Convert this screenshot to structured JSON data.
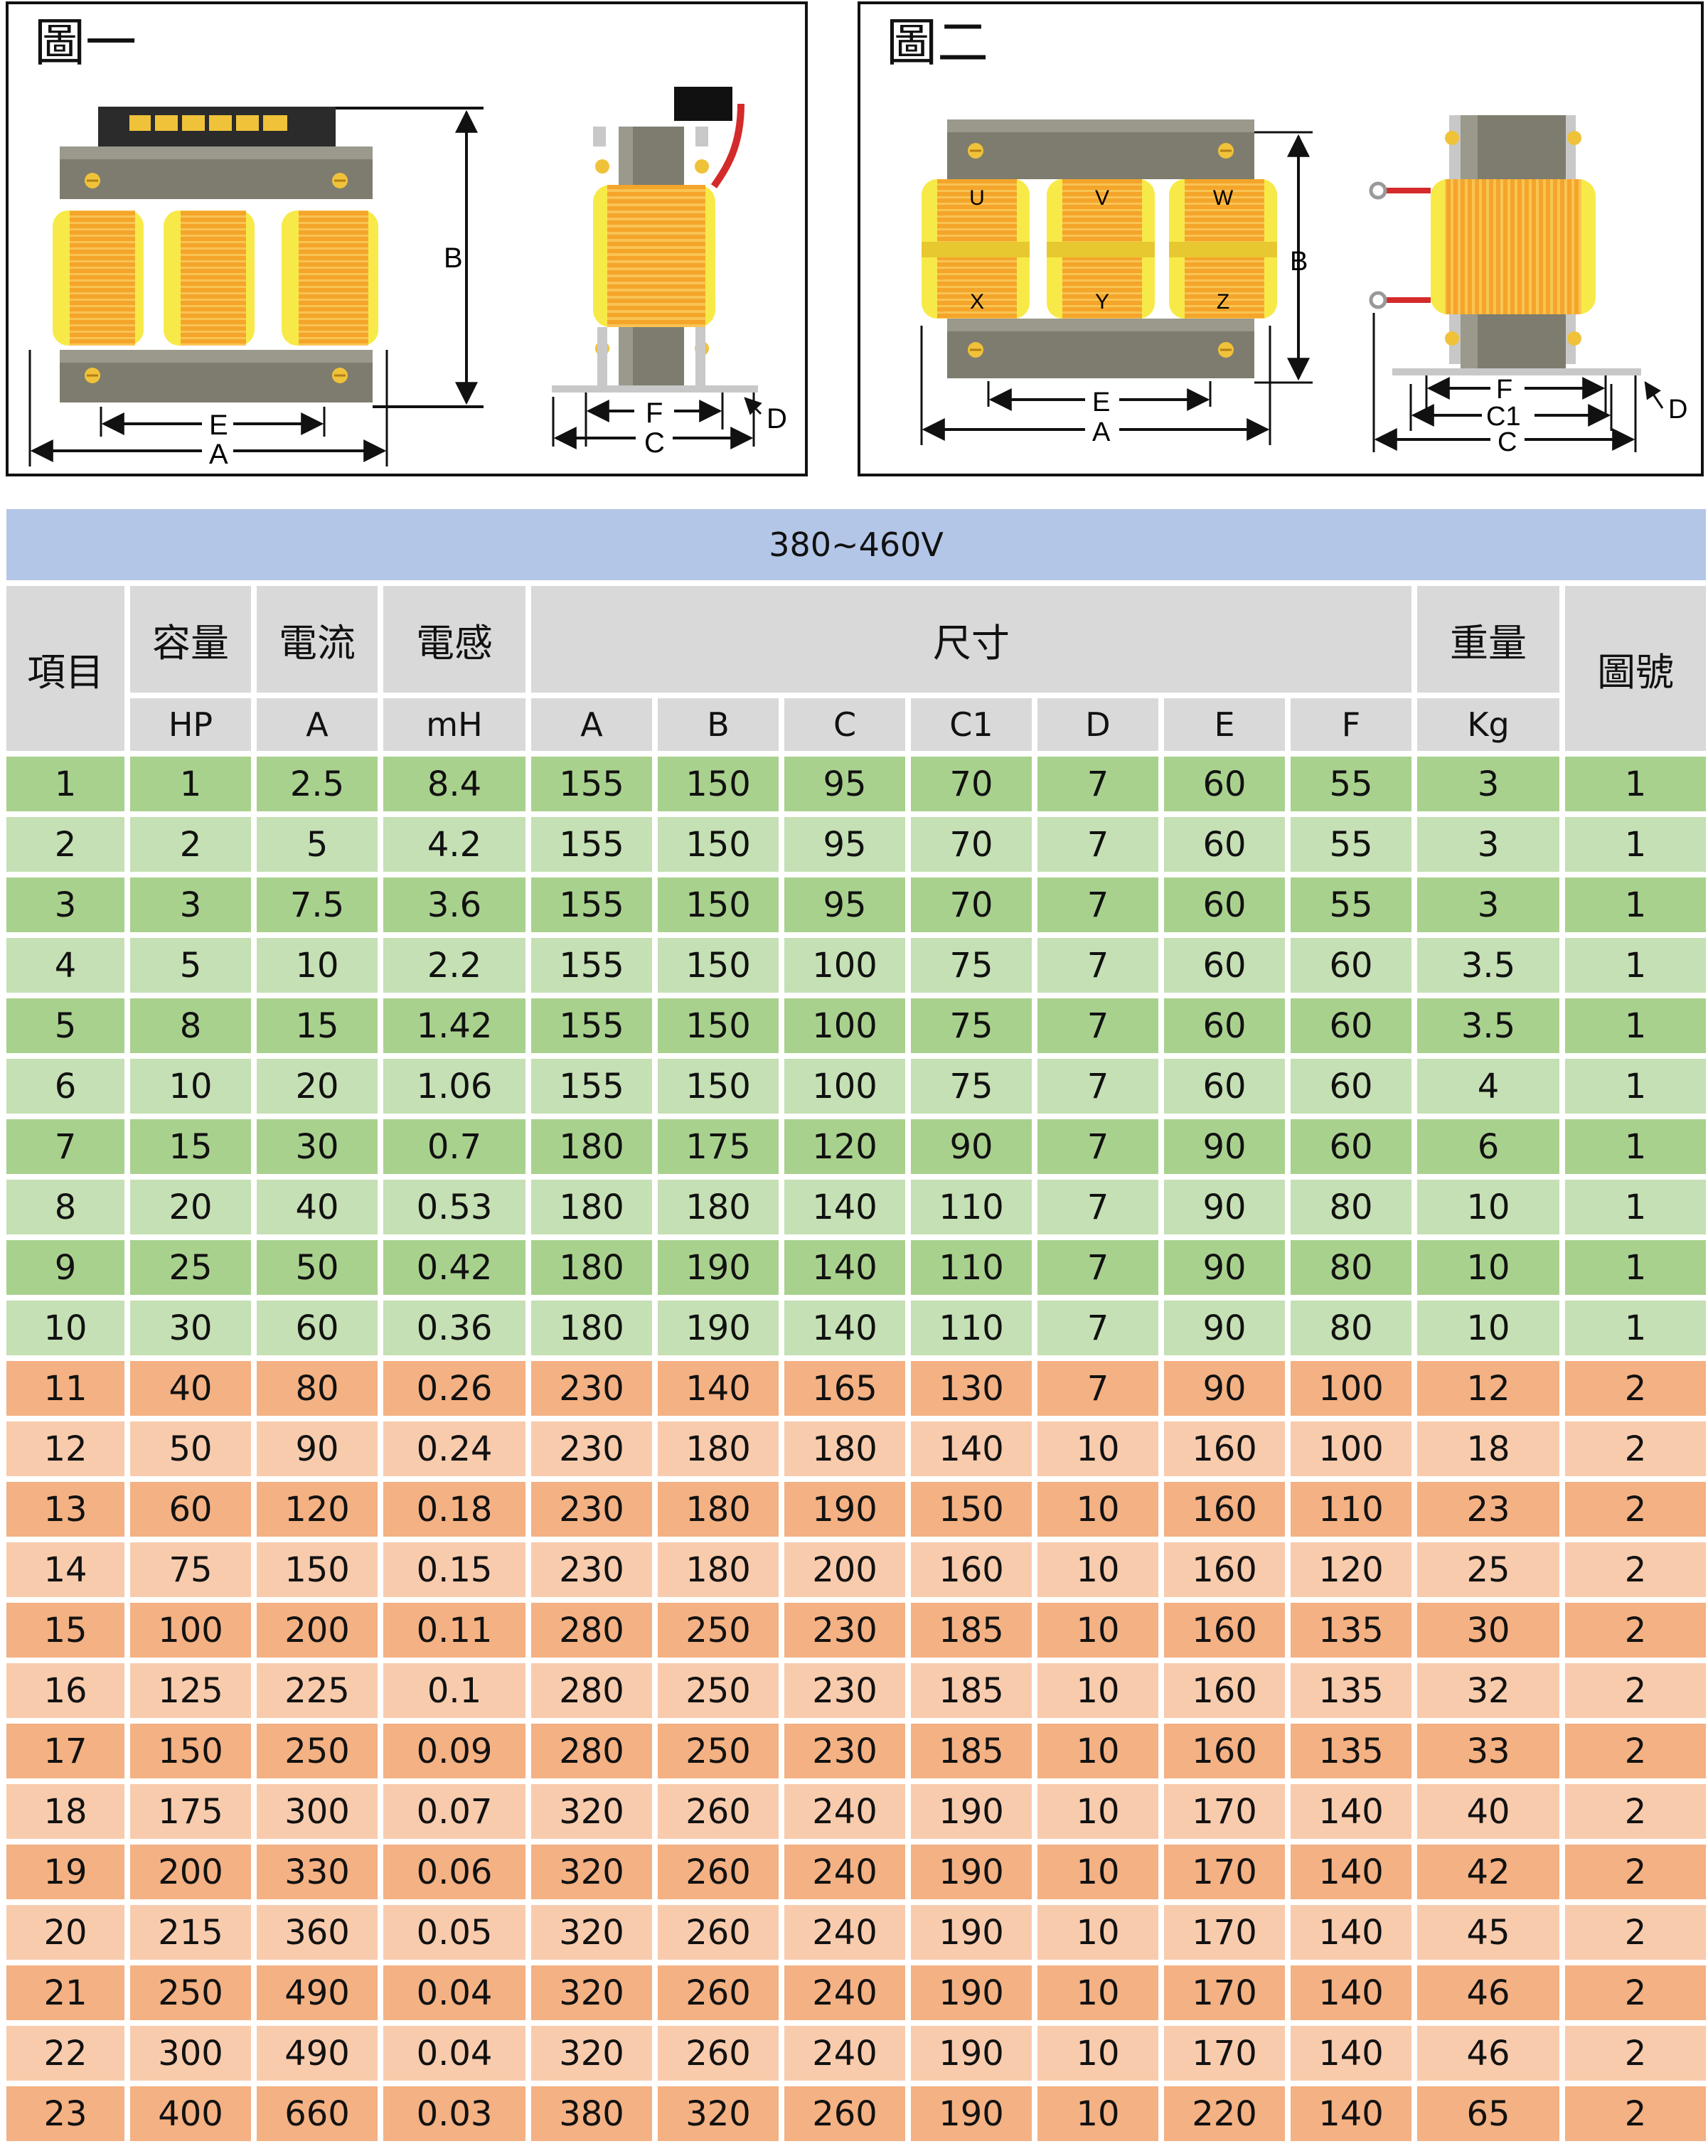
{
  "figures": [
    {
      "title": "圖一",
      "side_labels": {
        "d": "D",
        "f": "F",
        "c": "C"
      },
      "front_labels": {
        "b": "B",
        "e": "E",
        "a": "A"
      }
    },
    {
      "title": "圖二",
      "coil_labels": [
        "U",
        "V",
        "W",
        "X",
        "Y",
        "Z"
      ],
      "front_labels": {
        "b": "B",
        "e": "E",
        "a": "A"
      },
      "side_labels": {
        "f": "F",
        "c1": "C1",
        "c": "C",
        "d": "D"
      }
    }
  ],
  "table": {
    "voltage": "380~460V",
    "headers": {
      "item": "項目",
      "capacity": "容量",
      "current": "電流",
      "inductance": "電感",
      "dimensions": "尺寸",
      "weight": "重量",
      "figure_no": "圖號"
    },
    "units": [
      "HP",
      "A",
      "mH",
      "A",
      "B",
      "C",
      "C1",
      "D",
      "E",
      "F",
      "Kg"
    ],
    "rows": [
      [
        "1",
        "1",
        "2.5",
        "8.4",
        "155",
        "150",
        "95",
        "70",
        "7",
        "60",
        "55",
        "3",
        "1"
      ],
      [
        "2",
        "2",
        "5",
        "4.2",
        "155",
        "150",
        "95",
        "70",
        "7",
        "60",
        "55",
        "3",
        "1"
      ],
      [
        "3",
        "3",
        "7.5",
        "3.6",
        "155",
        "150",
        "95",
        "70",
        "7",
        "60",
        "55",
        "3",
        "1"
      ],
      [
        "4",
        "5",
        "10",
        "2.2",
        "155",
        "150",
        "100",
        "75",
        "7",
        "60",
        "60",
        "3.5",
        "1"
      ],
      [
        "5",
        "8",
        "15",
        "1.42",
        "155",
        "150",
        "100",
        "75",
        "7",
        "60",
        "60",
        "3.5",
        "1"
      ],
      [
        "6",
        "10",
        "20",
        "1.06",
        "155",
        "150",
        "100",
        "75",
        "7",
        "60",
        "60",
        "4",
        "1"
      ],
      [
        "7",
        "15",
        "30",
        "0.7",
        "180",
        "175",
        "120",
        "90",
        "7",
        "90",
        "60",
        "6",
        "1"
      ],
      [
        "8",
        "20",
        "40",
        "0.53",
        "180",
        "180",
        "140",
        "110",
        "7",
        "90",
        "80",
        "10",
        "1"
      ],
      [
        "9",
        "25",
        "50",
        "0.42",
        "180",
        "190",
        "140",
        "110",
        "7",
        "90",
        "80",
        "10",
        "1"
      ],
      [
        "10",
        "30",
        "60",
        "0.36",
        "180",
        "190",
        "140",
        "110",
        "7",
        "90",
        "80",
        "10",
        "1"
      ],
      [
        "11",
        "40",
        "80",
        "0.26",
        "230",
        "140",
        "165",
        "130",
        "7",
        "90",
        "100",
        "12",
        "2"
      ],
      [
        "12",
        "50",
        "90",
        "0.24",
        "230",
        "180",
        "180",
        "140",
        "10",
        "160",
        "100",
        "18",
        "2"
      ],
      [
        "13",
        "60",
        "120",
        "0.18",
        "230",
        "180",
        "190",
        "150",
        "10",
        "160",
        "110",
        "23",
        "2"
      ],
      [
        "14",
        "75",
        "150",
        "0.15",
        "230",
        "180",
        "200",
        "160",
        "10",
        "160",
        "120",
        "25",
        "2"
      ],
      [
        "15",
        "100",
        "200",
        "0.11",
        "280",
        "250",
        "230",
        "185",
        "10",
        "160",
        "135",
        "30",
        "2"
      ],
      [
        "16",
        "125",
        "225",
        "0.1",
        "280",
        "250",
        "230",
        "185",
        "10",
        "160",
        "135",
        "32",
        "2"
      ],
      [
        "17",
        "150",
        "250",
        "0.09",
        "280",
        "250",
        "230",
        "185",
        "10",
        "160",
        "135",
        "33",
        "2"
      ],
      [
        "18",
        "175",
        "300",
        "0.07",
        "320",
        "260",
        "240",
        "190",
        "10",
        "170",
        "140",
        "40",
        "2"
      ],
      [
        "19",
        "200",
        "330",
        "0.06",
        "320",
        "260",
        "240",
        "190",
        "10",
        "170",
        "140",
        "42",
        "2"
      ],
      [
        "20",
        "215",
        "360",
        "0.05",
        "320",
        "260",
        "240",
        "190",
        "10",
        "170",
        "140",
        "45",
        "2"
      ],
      [
        "21",
        "250",
        "490",
        "0.04",
        "320",
        "260",
        "240",
        "190",
        "10",
        "170",
        "140",
        "46",
        "2"
      ],
      [
        "22",
        "300",
        "490",
        "0.04",
        "320",
        "260",
        "240",
        "190",
        "10",
        "170",
        "140",
        "46",
        "2"
      ],
      [
        "23",
        "400",
        "660",
        "0.03",
        "380",
        "320",
        "260",
        "190",
        "10",
        "220",
        "140",
        "65",
        "2"
      ]
    ]
  },
  "colors": {
    "green_dark": "#a9d18e",
    "green_light": "#c5e0b4",
    "orange_dark": "#f4b183",
    "orange_light": "#f8cbad",
    "header_gray": "#d9d9d9",
    "voltage_blue": "#b4c6e7",
    "coil_orange": "#f5a623",
    "coil_yellow": "#f7ea48",
    "core_gray": "#7d7c6e"
  }
}
